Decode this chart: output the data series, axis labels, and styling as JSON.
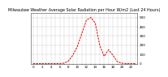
{
  "title": "Milwaukee Weather Average Solar Radiation per Hour W/m2 (Last 24 Hours)",
  "x_hours": [
    0,
    1,
    2,
    3,
    4,
    5,
    6,
    7,
    8,
    9,
    10,
    11,
    12,
    13,
    14,
    15,
    16,
    17,
    18,
    19,
    20,
    21,
    22,
    23
  ],
  "y_values": [
    0,
    0,
    0,
    0,
    0,
    0,
    0,
    5,
    30,
    95,
    190,
    330,
    470,
    500,
    440,
    200,
    80,
    150,
    90,
    20,
    5,
    0,
    0,
    0
  ],
  "line_color": "#dd0000",
  "bg_color": "#ffffff",
  "grid_color": "#999999",
  "ylim": [
    0,
    550
  ],
  "xlim": [
    -0.5,
    23.5
  ],
  "ytick_values": [
    0,
    100,
    200,
    300,
    400,
    500
  ],
  "xtick_step": 2,
  "title_fontsize": 3.5,
  "tick_fontsize": 3.0,
  "line_width": 0.7
}
